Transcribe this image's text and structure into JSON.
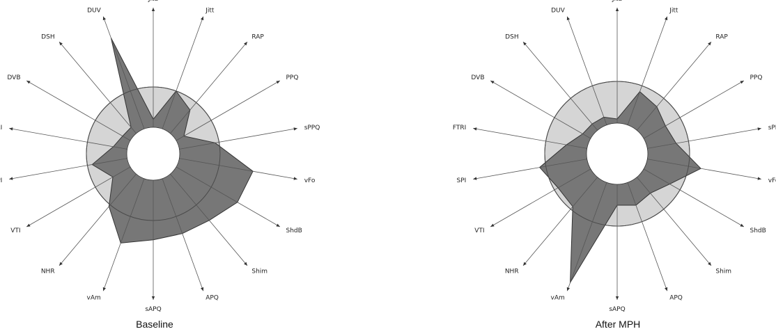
{
  "chart_data": [
    {
      "type": "radar",
      "title": "Baseline",
      "axes": [
        "Jita",
        "Jitt",
        "RAP",
        "PPQ",
        "sPPQ",
        "vFo",
        "ShdB",
        "Shim",
        "APQ",
        "sAPQ",
        "vAm",
        "NHR",
        "VTI",
        "SPI",
        "FTRI",
        "DVB",
        "DSH",
        "DUV"
      ],
      "reference_level": 1.0,
      "values": [
        0.2,
        1.0,
        0.76,
        0.22,
        0.9,
        1.85,
        1.75,
        1.5,
        1.45,
        1.48,
        1.7,
        1.05,
        0.5,
        0.88,
        0.35,
        0.22,
        0.2,
        2.4
      ],
      "grid": false,
      "colors": {
        "reference_fill": "#d5d5d5",
        "reference_stroke": "#4a4a4a",
        "data_fill": "#777777",
        "data_stroke": "#333333",
        "axis": "#555555"
      }
    },
    {
      "type": "radar",
      "title": "After MPH",
      "axes": [
        "Jita",
        "Jitt",
        "RAP",
        "PPQ",
        "sPPQ",
        "vFo",
        "ShdB",
        "Shim",
        "APQ",
        "sAPQ",
        "vAm",
        "NHR",
        "VTI",
        "SPI",
        "FTRI",
        "DVB",
        "DSH",
        "DUV"
      ],
      "reference_level": 1.0,
      "values": [
        0.1,
        0.85,
        0.74,
        0.6,
        0.7,
        1.3,
        0.72,
        0.5,
        0.58,
        0.5,
        2.55,
        0.92,
        0.9,
        1.15,
        0.5,
        0.22,
        0.2,
        0.2
      ],
      "grid": false,
      "colors": {
        "reference_fill": "#d5d5d5",
        "reference_stroke": "#4a4a4a",
        "data_fill": "#777777",
        "data_stroke": "#333333",
        "axis": "#555555"
      }
    }
  ]
}
